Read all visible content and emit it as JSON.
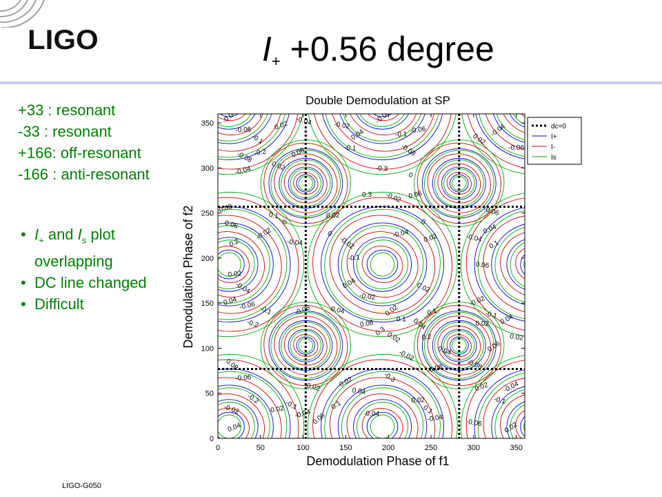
{
  "header": {
    "logo_text": "LIGO",
    "title_symbol": "I",
    "title_subscript": "+",
    "title_rest": " +0.56 degree"
  },
  "notes": [
    "+33   : resonant",
    "-33   : resonant",
    "+166: off-resonant",
    "-166 : anti-resonant"
  ],
  "bullets": {
    "b1_sym1": "I",
    "b1_sub1": "+",
    "b1_mid": " and ",
    "b1_sym2": "I",
    "b1_sub2": "s",
    "b1_rest": " plot",
    "b1_line2": "overlapping",
    "b2": "DC line changed",
    "b3": "Difficult"
  },
  "footer": "LIGO-G050",
  "colors": {
    "text_green": "#008000",
    "band": "#c9cde6",
    "dc": "#000000",
    "Iplus": "#0000cc",
    "Iminus": "#cc0000",
    "Is": "#00aa00"
  },
  "chart_data": {
    "type": "contour",
    "title": "Double Demodulation at SP",
    "xlabel": "Demodulation Phase of f1",
    "ylabel": "Demodulation Phase of f2",
    "xlim": [
      0,
      360
    ],
    "ylim": [
      0,
      360
    ],
    "xticks": [
      0,
      50,
      100,
      150,
      200,
      250,
      300,
      350
    ],
    "yticks": [
      0,
      50,
      100,
      150,
      200,
      250,
      300,
      350
    ],
    "legend": {
      "position": "top-right",
      "entries": [
        {
          "label": "dc=0",
          "color": "#000000",
          "style": "dotted"
        },
        {
          "label": "I+",
          "color": "#0000cc",
          "style": "solid"
        },
        {
          "label": "I-",
          "color": "#cc0000",
          "style": "solid"
        },
        {
          "label": "Is",
          "color": "#00aa00",
          "style": "solid"
        }
      ]
    },
    "dc_zero_lines": {
      "vertical_x": [
        103,
        283
      ],
      "horizontal_y": [
        77,
        257
      ]
    },
    "center_labels": [
      {
        "x": 192,
        "y": 297,
        "text": "-0.3"
      },
      {
        "x": 192,
        "y": 117,
        "text": "0.3"
      },
      {
        "x": 175,
        "y": 268,
        "text": "0.3"
      },
      {
        "x": 200,
        "y": 66,
        "text": "-0.3"
      }
    ],
    "contour_labels": [
      {
        "x": 15,
        "y": 355,
        "text": "-0.04"
      },
      {
        "x": 30,
        "y": 340,
        "text": "-0.06"
      },
      {
        "x": 45,
        "y": 330,
        "text": "-0.1"
      },
      {
        "x": 50,
        "y": 315,
        "text": "-0.2"
      },
      {
        "x": 30,
        "y": 310,
        "text": "-0.08"
      },
      {
        "x": 30,
        "y": 295,
        "text": "-0.04"
      },
      {
        "x": 70,
        "y": 300,
        "text": "0.02"
      },
      {
        "x": 75,
        "y": 345,
        "text": "0.02"
      },
      {
        "x": 100,
        "y": 350,
        "text": "-0.04"
      },
      {
        "x": 95,
        "y": 315,
        "text": "0.06"
      },
      {
        "x": 145,
        "y": 345,
        "text": "-0.02"
      },
      {
        "x": 165,
        "y": 335,
        "text": "0.04"
      },
      {
        "x": 155,
        "y": 320,
        "text": "-0.1"
      },
      {
        "x": 195,
        "y": 355,
        "text": "-0.04"
      },
      {
        "x": 215,
        "y": 335,
        "text": "-0.1"
      },
      {
        "x": 222,
        "y": 318,
        "text": "-0.08"
      },
      {
        "x": 235,
        "y": 340,
        "text": "-0.06"
      },
      {
        "x": 225,
        "y": 290,
        "text": "0"
      },
      {
        "x": 232,
        "y": 268,
        "text": "0.06"
      },
      {
        "x": 205,
        "y": 265,
        "text": "-0.02"
      },
      {
        "x": 10,
        "y": 253,
        "text": "0.08"
      },
      {
        "x": 15,
        "y": 235,
        "text": "0.06"
      },
      {
        "x": 20,
        "y": 215,
        "text": "0.2"
      },
      {
        "x": 65,
        "y": 245,
        "text": "0.1"
      },
      {
        "x": 55,
        "y": 225,
        "text": "-0.02"
      },
      {
        "x": 90,
        "y": 215,
        "text": "-0.04"
      },
      {
        "x": 80,
        "y": 238,
        "text": "0"
      },
      {
        "x": 135,
        "y": 245,
        "text": "0.02"
      },
      {
        "x": 150,
        "y": 215,
        "text": "-0.02"
      },
      {
        "x": 160,
        "y": 198,
        "text": "-0.1"
      },
      {
        "x": 130,
        "y": 225,
        "text": "0"
      },
      {
        "x": 215,
        "y": 225,
        "text": "-0.04"
      },
      {
        "x": 240,
        "y": 238,
        "text": "0"
      },
      {
        "x": 250,
        "y": 220,
        "text": "0.02"
      },
      {
        "x": 320,
        "y": 250,
        "text": "-0.06"
      },
      {
        "x": 320,
        "y": 230,
        "text": "0.04"
      },
      {
        "x": 300,
        "y": 220,
        "text": "-0.04"
      },
      {
        "x": 325,
        "y": 213,
        "text": "0.1"
      },
      {
        "x": 310,
        "y": 190,
        "text": "0.06"
      },
      {
        "x": 330,
        "y": 340,
        "text": "-0.04"
      },
      {
        "x": 350,
        "y": 320,
        "text": "-0.06"
      },
      {
        "x": 305,
        "y": 330,
        "text": "0.02"
      },
      {
        "x": 20,
        "y": 180,
        "text": "0.02"
      },
      {
        "x": 28,
        "y": 165,
        "text": "-0.04"
      },
      {
        "x": 35,
        "y": 145,
        "text": "-0.06"
      },
      {
        "x": 55,
        "y": 140,
        "text": "-0.1"
      },
      {
        "x": 15,
        "y": 150,
        "text": "0.04"
      },
      {
        "x": 40,
        "y": 125,
        "text": "-0.2"
      },
      {
        "x": 100,
        "y": 140,
        "text": "-0.08"
      },
      {
        "x": 140,
        "y": 140,
        "text": "0.04"
      },
      {
        "x": 155,
        "y": 170,
        "text": "0.04"
      },
      {
        "x": 175,
        "y": 155,
        "text": "-0.02"
      },
      {
        "x": 205,
        "y": 140,
        "text": "0.02"
      },
      {
        "x": 215,
        "y": 130,
        "text": "0.1"
      },
      {
        "x": 235,
        "y": 125,
        "text": "0.04"
      },
      {
        "x": 245,
        "y": 110,
        "text": "0.2"
      },
      {
        "x": 205,
        "y": 110,
        "text": "0.02"
      },
      {
        "x": 175,
        "y": 125,
        "text": "0.08"
      },
      {
        "x": 240,
        "y": 165,
        "text": "0.02"
      },
      {
        "x": 252,
        "y": 138,
        "text": "0.1"
      },
      {
        "x": 265,
        "y": 95,
        "text": "0.04"
      },
      {
        "x": 305,
        "y": 150,
        "text": "-0.02"
      },
      {
        "x": 320,
        "y": 135,
        "text": "-0.1"
      },
      {
        "x": 340,
        "y": 130,
        "text": "0.04"
      },
      {
        "x": 350,
        "y": 110,
        "text": "0.02"
      },
      {
        "x": 325,
        "y": 100,
        "text": "0.06"
      },
      {
        "x": 310,
        "y": 125,
        "text": "0.02"
      },
      {
        "x": 15,
        "y": 80,
        "text": "0.08"
      },
      {
        "x": 30,
        "y": 65,
        "text": "-0.06"
      },
      {
        "x": 40,
        "y": 42,
        "text": "-0.2"
      },
      {
        "x": 70,
        "y": 30,
        "text": "0.02"
      },
      {
        "x": 85,
        "y": 35,
        "text": "-0.1"
      },
      {
        "x": 100,
        "y": 25,
        "text": "-0.04"
      },
      {
        "x": 15,
        "y": 30,
        "text": "-0.02"
      },
      {
        "x": 20,
        "y": 10,
        "text": "0.04"
      },
      {
        "x": 110,
        "y": 55,
        "text": "-0.02"
      },
      {
        "x": 150,
        "y": 60,
        "text": "-0.02"
      },
      {
        "x": 165,
        "y": 50,
        "text": "0.04"
      },
      {
        "x": 140,
        "y": 35,
        "text": "0.1"
      },
      {
        "x": 180,
        "y": 25,
        "text": "-0.04"
      },
      {
        "x": 120,
        "y": 20,
        "text": "0.06"
      },
      {
        "x": 235,
        "y": 40,
        "text": "0.02"
      },
      {
        "x": 245,
        "y": 30,
        "text": "0.1"
      },
      {
        "x": 255,
        "y": 20,
        "text": "-0.04"
      },
      {
        "x": 220,
        "y": 90,
        "text": "-0.02"
      },
      {
        "x": 255,
        "y": 75,
        "text": "-0.08"
      },
      {
        "x": 300,
        "y": 80,
        "text": "-0.08"
      },
      {
        "x": 310,
        "y": 55,
        "text": "0.02"
      },
      {
        "x": 330,
        "y": 40,
        "text": "-0.1"
      },
      {
        "x": 345,
        "y": 55,
        "text": "-0.04"
      },
      {
        "x": 300,
        "y": 15,
        "text": "-0.06"
      },
      {
        "x": 345,
        "y": 10,
        "text": "0.02"
      }
    ]
  }
}
